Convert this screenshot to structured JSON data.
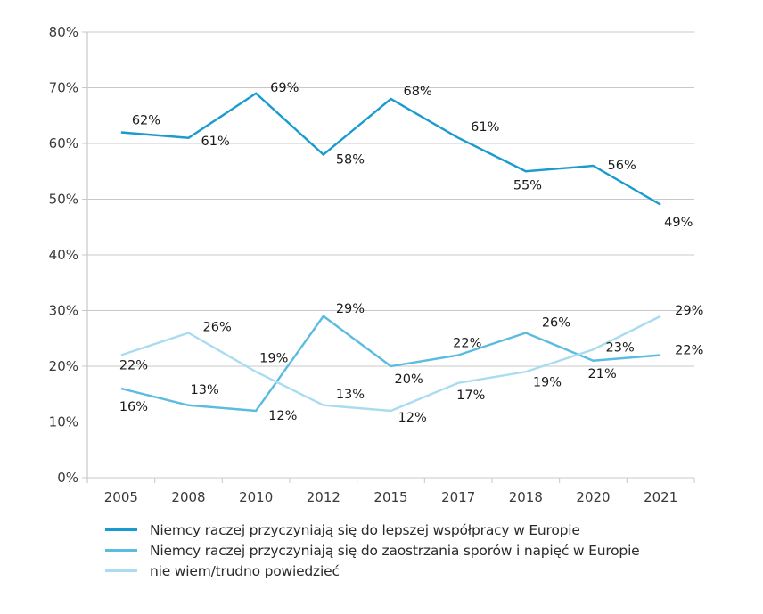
{
  "chart_data": {
    "type": "line",
    "title": "",
    "xlabel": "",
    "ylabel": "",
    "categories": [
      "2005",
      "2008",
      "2010",
      "2012",
      "2015",
      "2017",
      "2018",
      "2020",
      "2021"
    ],
    "ylim": [
      0,
      80
    ],
    "yticks": [
      "0%",
      "10%",
      "20%",
      "30%",
      "40%",
      "50%",
      "60%",
      "70%",
      "80%"
    ],
    "grid": true,
    "legend_position": "bottom-left",
    "series": [
      {
        "name": "Niemcy raczej przyczyniają się do lepszej współpracy w Europie",
        "color": "#1a9bd0",
        "values": [
          62,
          61,
          69,
          58,
          68,
          61,
          55,
          56,
          49
        ],
        "labels": [
          "62%",
          "61%",
          "69%",
          "58%",
          "68%",
          "61%",
          "55%",
          "56%",
          "49%"
        ]
      },
      {
        "name": "Niemcy raczej przyczyniają się do zaostrzania sporów i napięć w Europie",
        "color": "#5bbbe0",
        "values": [
          16,
          13,
          12,
          29,
          20,
          22,
          26,
          21,
          22
        ],
        "labels": [
          "16%",
          "13%",
          "12%",
          "29%",
          "20%",
          "22%",
          "26%",
          "21%",
          "22%"
        ]
      },
      {
        "name": "nie wiem/trudno powiedzieć",
        "color": "#a9dcf0",
        "values": [
          22,
          26,
          19,
          13,
          12,
          17,
          19,
          23,
          29
        ],
        "labels": [
          "22%",
          "26%",
          "19%",
          "13%",
          "12%",
          "17%",
          "19%",
          "23%",
          "29%"
        ]
      }
    ]
  }
}
